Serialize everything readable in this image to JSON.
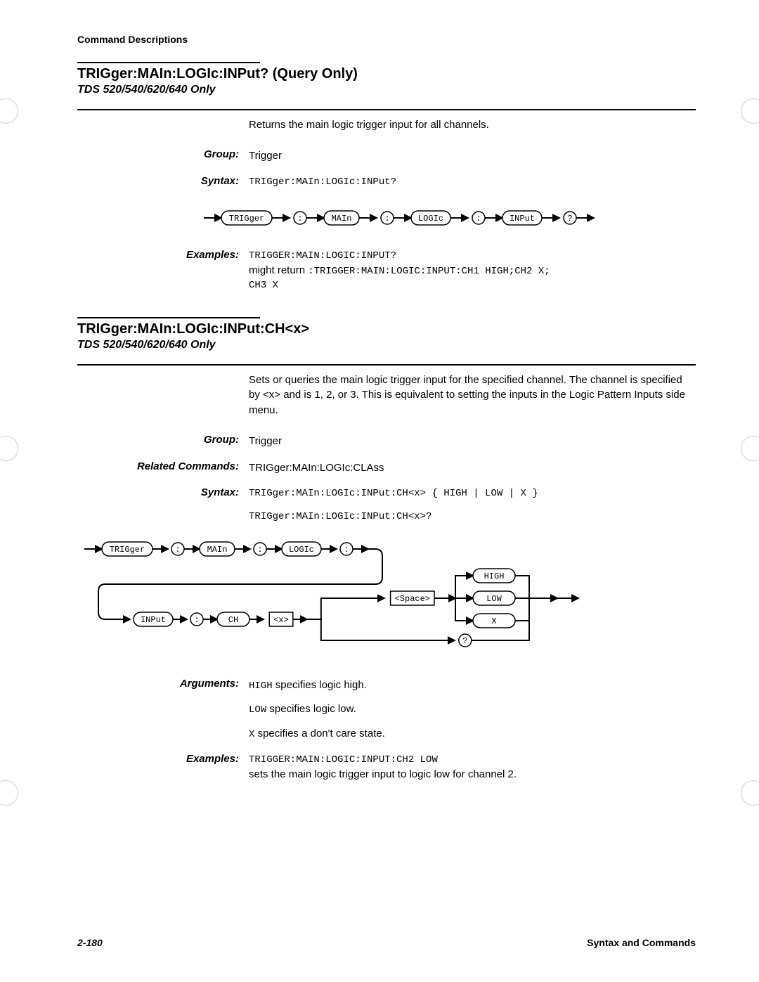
{
  "page": {
    "header": "Command Descriptions",
    "footer_left": "2-180",
    "footer_right": "Syntax and Commands"
  },
  "section1": {
    "title": "TRIGger:MAIn:LOGIc:INPut? (Query Only)",
    "subtitle": "TDS 520/540/620/640 Only",
    "description": "Returns the main logic trigger input for all channels.",
    "group_label": "Group:",
    "group_value": "Trigger",
    "syntax_label": "Syntax:",
    "syntax_value": "TRIGger:MAIn:LOGIc:INPut?",
    "examples_label": "Examples:",
    "examples_line1": "TRIGGER:MAIN:LOGIC:INPUT?",
    "examples_line2a": "might return ",
    "examples_line2b": ":TRIGGER:MAIN:LOGIC:INPUT:CH1 HIGH;CH2 X;",
    "examples_line3": "CH3 X",
    "diagram": {
      "nodes": [
        "TRIGger",
        ":",
        "MAIn",
        ":",
        "LOGIc",
        ":",
        "INPut",
        "?"
      ]
    }
  },
  "section2": {
    "title": "TRIGger:MAIn:LOGIc:INPut:CH<x>",
    "subtitle": "TDS 520/540/620/640 Only",
    "description": "Sets or queries the main logic trigger input for the specified channel. The channel is specified by <x> and is 1, 2, or 3. This is equivalent to setting the inputs in the Logic Pattern Inputs side menu.",
    "group_label": "Group:",
    "group_value": "Trigger",
    "related_label": "Related Commands:",
    "related_value": "TRIGger:MAIn:LOGIc:CLAss",
    "syntax_label": "Syntax:",
    "syntax_line1": "TRIGger:MAIn:LOGIc:INPut:CH<x> { HIGH | LOW | X }",
    "syntax_line2": "TRIGger:MAIn:LOGIc:INPut:CH<x>?",
    "arguments_label": "Arguments:",
    "arg1_code": "HIGH",
    "arg1_text": " specifies logic high.",
    "arg2_code": "LOW",
    "arg2_text": " specifies logic low.",
    "arg3_code": "X",
    "arg3_text": " specifies a don't care state.",
    "examples_label": "Examples:",
    "ex_line1": "TRIGGER:MAIN:LOGIC:INPUT:CH2 LOW",
    "ex_line2": "sets the main logic trigger input to logic low for channel 2.",
    "diagram": {
      "row1": [
        "TRIGger",
        ":",
        "MAIn",
        ":",
        "LOGIc",
        ":"
      ],
      "row2": [
        "INPut",
        ":",
        "CH",
        "<x>"
      ],
      "space": "<Space>",
      "options": [
        "HIGH",
        "LOW",
        "X"
      ],
      "q": "?"
    }
  },
  "style": {
    "bubble_fill": "#ffffff",
    "bubble_stroke": "#000000",
    "bubble_stroke_width": 1.5,
    "line_width": 2,
    "mono_font": "Courier New",
    "mono_size": 12,
    "arrow_size": 5
  }
}
